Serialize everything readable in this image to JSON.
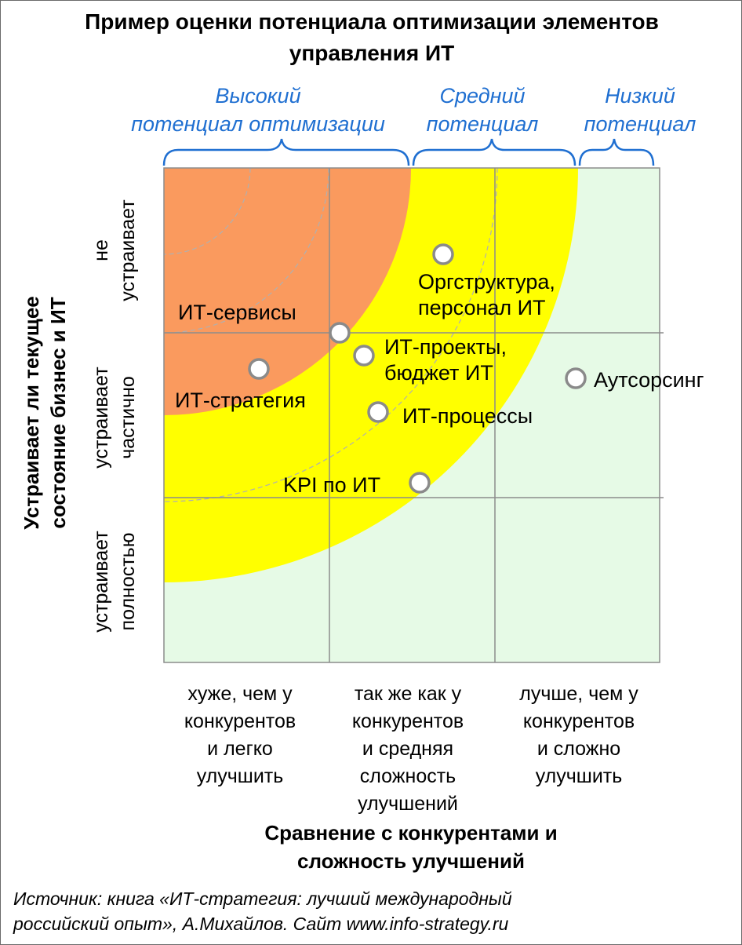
{
  "title": {
    "line1": "Пример оценки потенциала оптимизации элементов",
    "line2": "управления ИТ"
  },
  "brackets": [
    {
      "lines": [
        "Высокий",
        "потенциал оптимизации"
      ]
    },
    {
      "lines": [
        "Средний",
        "потенциал"
      ]
    },
    {
      "lines": [
        "Низкий",
        "потенциал"
      ]
    }
  ],
  "y_axis": {
    "title_lines": [
      "Устраивает ли текущее",
      "состояние бизнес и ИТ"
    ],
    "levels": [
      {
        "lines": [
          "не",
          "устраивает"
        ]
      },
      {
        "lines": [
          "устраивает",
          "частично"
        ]
      },
      {
        "lines": [
          "устраивает",
          "полностью"
        ]
      }
    ]
  },
  "x_axis": {
    "title_lines": [
      "Сравнение с конкурентами и",
      "сложность улучшений"
    ],
    "levels": [
      {
        "lines": [
          "хуже, чем у",
          "конкурентов",
          "и легко",
          "улучшить"
        ]
      },
      {
        "lines": [
          "так же как у",
          "конкурентов",
          "и средняя",
          "сложность",
          "улучшений"
        ]
      },
      {
        "lines": [
          "лучше, чем у",
          "конкурентов",
          "и сложно",
          "улучшить"
        ]
      }
    ]
  },
  "points": [
    {
      "lines": [
        "Оргструктура,",
        "персонал ИТ"
      ]
    },
    {
      "lines": [
        "ИТ-сервисы"
      ]
    },
    {
      "lines": [
        "ИТ-проекты,",
        "бюджет ИТ"
      ]
    },
    {
      "lines": [
        "ИТ-стратегия"
      ]
    },
    {
      "lines": [
        "Аутсорсинг"
      ]
    },
    {
      "lines": [
        "ИТ-процессы"
      ]
    },
    {
      "lines": [
        "KPI по ИТ"
      ]
    }
  ],
  "source": {
    "line1": "Источник: книга «ИТ-стратегия: лучший международный",
    "line2": "российский опыт», А.Михайлов.   Сайт www.info-strategy.ru"
  },
  "colors": {
    "high": "#fa9a5e",
    "medium": "#ffff00",
    "low": "#e6fae6",
    "grid": "#8c8c8c",
    "accent_text": "#1f6fd1"
  }
}
